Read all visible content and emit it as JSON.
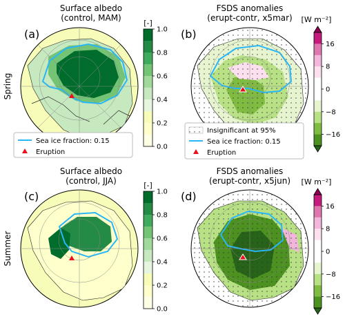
{
  "rows": [
    {
      "label": "Spring"
    },
    {
      "label": "Summer"
    }
  ],
  "panels": [
    {
      "letter": "(a)",
      "title1": "Surface albedo",
      "title2": "(control, MAM)",
      "legend": {
        "seaice": "Sea ice fraction: 0.15",
        "eruption": "Eruption"
      }
    },
    {
      "letter": "(b)",
      "title1": "FSDS anomalies",
      "title2": "(erupt-contr, x5mar)",
      "legend": {
        "insig": "Insignificant at 95%",
        "seaice": "Sea ice fraction: 0.15",
        "eruption": "Eruption"
      }
    },
    {
      "letter": "(c)",
      "title1": "Surface albedo",
      "title2": "(control, JJA)"
    },
    {
      "letter": "(d)",
      "title1": "FSDS anomalies",
      "title2": "(erupt-contr, x5jun)"
    }
  ],
  "colorbars": {
    "albedo": {
      "unit": "[-]",
      "ticks": [
        "1.0",
        "0.8",
        "0.6",
        "0.4",
        "0.2",
        "0.0"
      ],
      "colors": [
        "#006d2c",
        "#238b45",
        "#41ab5d",
        "#74c476",
        "#a1d99b",
        "#c7e9c0",
        "#e5f5e0",
        "#f7fcb9",
        "#ffffcc",
        "#ffffe5"
      ]
    },
    "fsds": {
      "unit": "[W m⁻²]",
      "ticks": [
        "16",
        "8",
        "0",
        "−8",
        "−16"
      ],
      "colors": [
        "#8e0152",
        "#c51b7d",
        "#de77ae",
        "#f1b6da",
        "#fde0ef",
        "#ffffff",
        "#ffffff",
        "#e6f5d0",
        "#b8e186",
        "#7fbc41",
        "#4d9221",
        "#276419"
      ]
    }
  },
  "colors": {
    "seaice": "#29b6f6",
    "eruption": "#e8101a",
    "ocean_albedo": "#f7fcb9",
    "sea_anom": "#ffffff"
  }
}
